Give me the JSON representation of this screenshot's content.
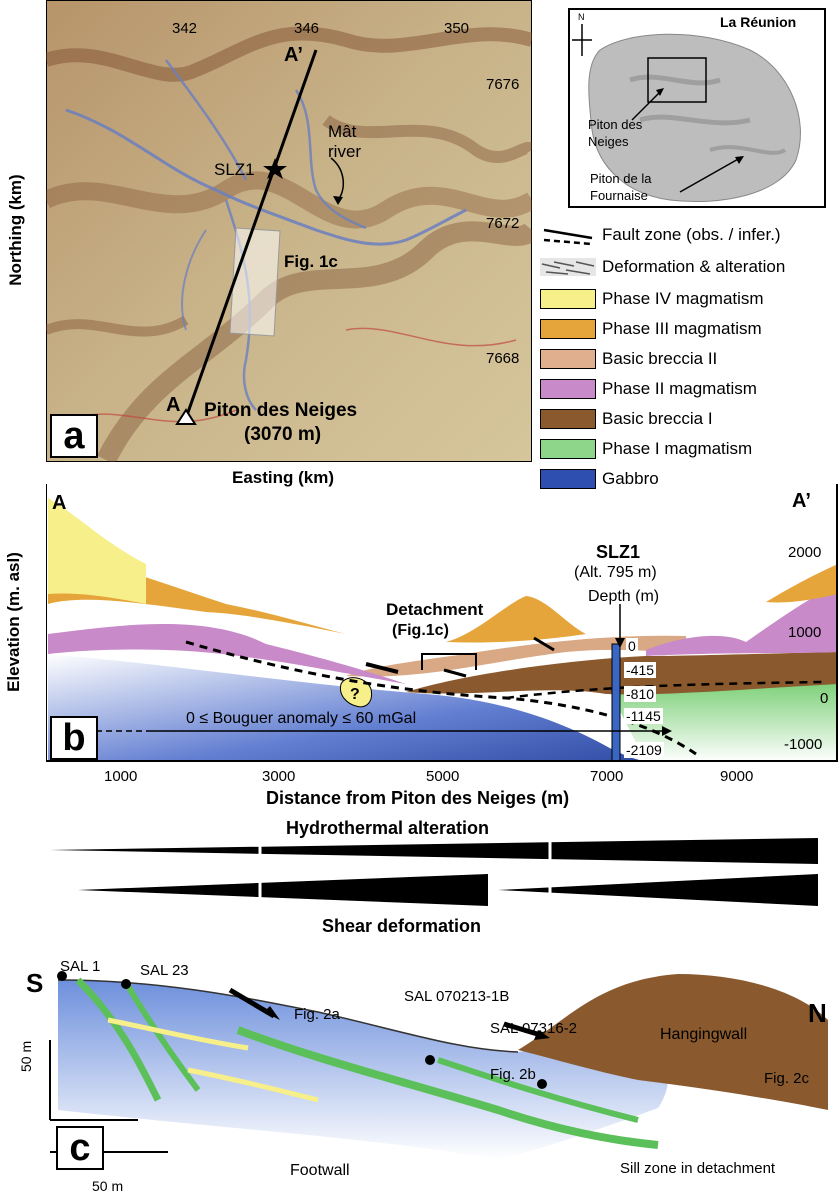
{
  "panel_a": {
    "letter": "a",
    "ylabel": "Northing (km)",
    "xlabel": "Easting (km)",
    "x_ticks": [
      "342",
      "346",
      "350"
    ],
    "y_ticks": [
      "7676",
      "7672",
      "7668"
    ],
    "labels": {
      "a_prime": "A’",
      "a": "A",
      "slz1": "SLZ1",
      "river": "Mât\nriver",
      "fig1c": "Fig. 1c",
      "piton": "Piton des Neiges",
      "altitude": "(3070 m)"
    }
  },
  "inset": {
    "title": "La Réunion",
    "north": "N",
    "piton_neiges": "Piton des\nNeiges",
    "piton_fournaise": "Piton de la\nFournaise"
  },
  "legend": {
    "items": [
      {
        "label": "Fault zone (obs. / infer.)",
        "kind": "fault"
      },
      {
        "label": "Deformation & alteration",
        "kind": "deform"
      },
      {
        "label": "Phase IV magmatism",
        "color": "#f6ef8a"
      },
      {
        "label": "Phase III magmatism",
        "color": "#e5a53a"
      },
      {
        "label": "Basic breccia II",
        "color": "#e0b08e"
      },
      {
        "label": "Phase II magmatism",
        "color": "#c88ac8"
      },
      {
        "label": "Basic breccia I",
        "color": "#8a5a2e"
      },
      {
        "label": "Phase I magmatism",
        "color": "#8ed68a"
      },
      {
        "label": "Gabbro",
        "color": "#2f4fb0"
      }
    ]
  },
  "panel_b": {
    "letter": "b",
    "ylabel": "Elevation (m. asl)",
    "xlabel": "Distance from Piton des Neiges (m)",
    "x_ticks": [
      "1000",
      "3000",
      "5000",
      "7000",
      "9000"
    ],
    "y_ticks": [
      "2000",
      "1000",
      "0",
      "-1000"
    ],
    "end_a": "A",
    "end_a_prime": "A’",
    "well": "SLZ1",
    "well_alt": "(Alt. 795 m)",
    "depth_label": "Depth (m)",
    "depths": [
      "0",
      "-415",
      "-810",
      "-1145",
      "-2109"
    ],
    "detachment": "Detachment",
    "detachment_ref": "(Fig.1c)",
    "question": "?",
    "bouguer": "0 ≤ Bouguer anomaly ≤ 60 mGal"
  },
  "panel_c": {
    "letter": "c",
    "top_label": "Hydrothermal alteration",
    "shear_label": "Shear deformation",
    "s": "S",
    "n": "N",
    "samples": [
      "SAL 1",
      "SAL 23",
      "SAL 070213-1B",
      "SAL 07316-2"
    ],
    "fig_refs": [
      "Fig. 2a",
      "Fig. 2b",
      "Fig. 2c"
    ],
    "hangingwall": "Hangingwall",
    "footwall": "Footwall",
    "sill": "Sill zone in detachment",
    "scale_v": "50 m",
    "scale_h": "50 m"
  }
}
